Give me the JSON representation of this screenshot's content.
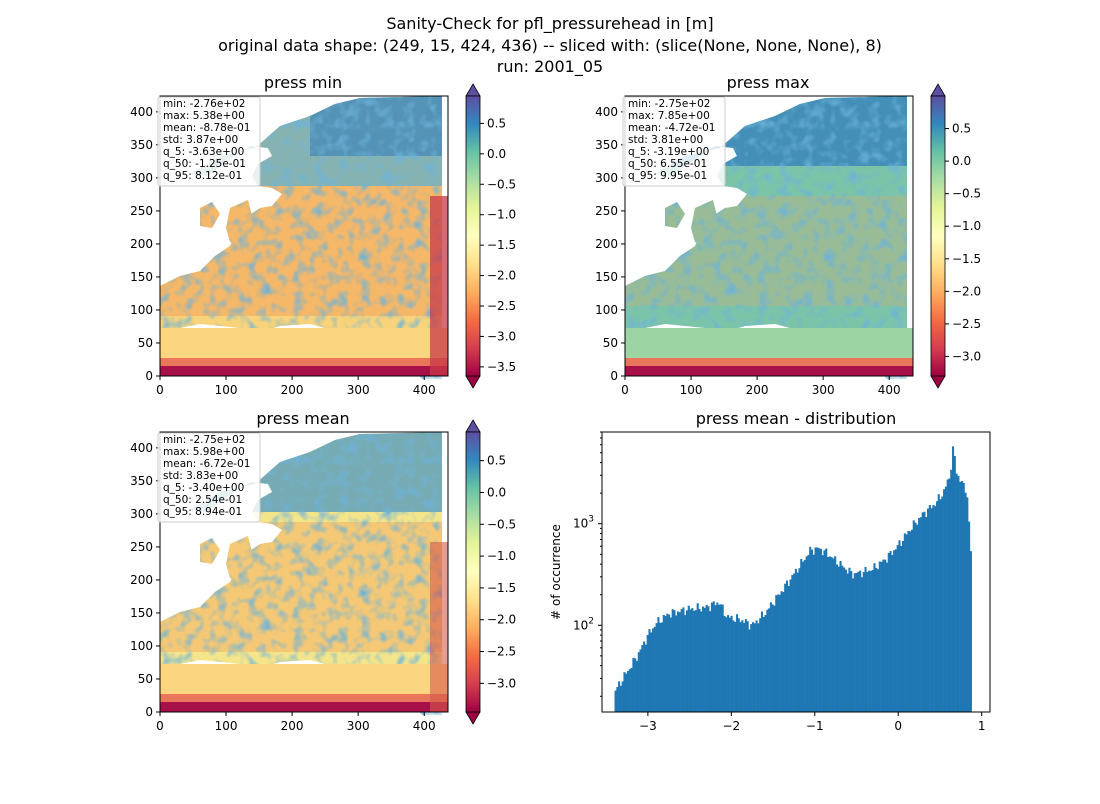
{
  "figure": {
    "title_lines": [
      "Sanity-Check for pfl_pressurehead in [m]",
      "original data shape: (249, 15, 424, 436) -- sliced with: (slice(None, None, None), 8)",
      "run: 2001_05"
    ]
  },
  "colors": {
    "histogram": "#1f77b4",
    "colormap": "Spectral"
  },
  "chart_data": [
    {
      "type": "heatmap",
      "title": "press min",
      "x_ticks": [
        "0",
        "100",
        "200",
        "300",
        "400"
      ],
      "y_ticks": [
        "0",
        "50",
        "100",
        "150",
        "200",
        "250",
        "300",
        "350",
        "400"
      ],
      "xlim": [
        0,
        436
      ],
      "ylim": [
        0,
        424
      ],
      "colorbar": {
        "min": -3.65,
        "max": 0.95,
        "extend": "both",
        "ticks": [
          "0.5",
          "0.0",
          "−0.5",
          "−1.0",
          "−1.5",
          "−2.0",
          "−2.5",
          "−3.0",
          "−3.5"
        ],
        "tick_values": [
          0.5,
          0.0,
          -0.5,
          -1.0,
          -1.5,
          -2.0,
          -2.5,
          -3.0,
          -3.5
        ]
      },
      "stats": [
        "min: -2.76e+02",
        "max: 5.38e+00",
        "mean: -8.78e-01",
        "std: 3.87e+00",
        "q_5: -3.63e+00",
        "q_50: -1.25e-01",
        "q_95: 8.12e-01"
      ]
    },
    {
      "type": "heatmap",
      "title": "press max",
      "x_ticks": [
        "0",
        "100",
        "200",
        "300",
        "400"
      ],
      "y_ticks": [
        "0",
        "50",
        "100",
        "150",
        "200",
        "250",
        "300",
        "350",
        "400"
      ],
      "xlim": [
        0,
        436
      ],
      "ylim": [
        0,
        424
      ],
      "colorbar": {
        "min": -3.3,
        "max": 1.0,
        "extend": "both",
        "ticks": [
          "0.5",
          "0.0",
          "−0.5",
          "−1.0",
          "−1.5",
          "−2.0",
          "−2.5",
          "−3.0"
        ],
        "tick_values": [
          0.5,
          0.0,
          -0.5,
          -1.0,
          -1.5,
          -2.0,
          -2.5,
          -3.0
        ]
      },
      "stats": [
        "min: -2.75e+02",
        "max: 7.85e+00",
        "mean: -4.72e-01",
        "std: 3.81e+00",
        "q_5: -3.19e+00",
        "q_50: 6.55e-01",
        "q_95: 9.95e-01"
      ]
    },
    {
      "type": "heatmap",
      "title": "press mean",
      "x_ticks": [
        "0",
        "100",
        "200",
        "300",
        "400"
      ],
      "y_ticks": [
        "0",
        "50",
        "100",
        "150",
        "200",
        "250",
        "300",
        "350",
        "400"
      ],
      "xlim": [
        0,
        436
      ],
      "ylim": [
        0,
        424
      ],
      "colorbar": {
        "min": -3.45,
        "max": 0.95,
        "extend": "both",
        "ticks": [
          "0.5",
          "0.0",
          "−0.5",
          "−1.0",
          "−1.5",
          "−2.0",
          "−2.5",
          "−3.0"
        ],
        "tick_values": [
          0.5,
          0.0,
          -0.5,
          -1.0,
          -1.5,
          -2.0,
          -2.5,
          -3.0
        ]
      },
      "stats": [
        "min: -2.75e+02",
        "max: 5.98e+00",
        "mean: -6.72e-01",
        "std: 3.83e+00",
        "q_5: -3.40e+00",
        "q_50: 2.54e-01",
        "q_95: 8.94e-01"
      ]
    },
    {
      "type": "bar",
      "title": "press mean - distribution",
      "ylabel": "# of occurrence",
      "xlabel": "",
      "y_scale": "log",
      "xlim": [
        -3.55,
        1.1
      ],
      "ylim": [
        14,
        8000
      ],
      "x_ticks": [
        "−3",
        "−2",
        "−1",
        "0",
        "1"
      ],
      "x_tick_values": [
        -3,
        -2,
        -1,
        0,
        1
      ],
      "y_ticks": [
        {
          "label": "10",
          "exp": "2",
          "value": 100
        },
        {
          "label": "10",
          "exp": "3",
          "value": 1000
        }
      ],
      "bins": {
        "start": -3.4,
        "end": 0.88,
        "count": 200
      },
      "anchors": [
        [
          -3.4,
          22
        ],
        [
          -3.3,
          30
        ],
        [
          -3.2,
          40
        ],
        [
          -3.1,
          55
        ],
        [
          -3.0,
          80
        ],
        [
          -2.9,
          105
        ],
        [
          -2.75,
          130
        ],
        [
          -2.5,
          145
        ],
        [
          -2.3,
          150
        ],
        [
          -2.15,
          170
        ],
        [
          -2.05,
          120
        ],
        [
          -1.9,
          115
        ],
        [
          -1.75,
          100
        ],
        [
          -1.6,
          130
        ],
        [
          -1.45,
          190
        ],
        [
          -1.3,
          280
        ],
        [
          -1.15,
          420
        ],
        [
          -1.05,
          550
        ],
        [
          -0.95,
          570
        ],
        [
          -0.85,
          510
        ],
        [
          -0.7,
          400
        ],
        [
          -0.55,
          320
        ],
        [
          -0.45,
          330
        ],
        [
          -0.3,
          360
        ],
        [
          -0.15,
          450
        ],
        [
          0.0,
          610
        ],
        [
          0.15,
          900
        ],
        [
          0.3,
          1250
        ],
        [
          0.45,
          1600
        ],
        [
          0.55,
          2100
        ],
        [
          0.62,
          3000
        ],
        [
          0.66,
          5700
        ],
        [
          0.7,
          3200
        ],
        [
          0.76,
          2500
        ],
        [
          0.82,
          2200
        ],
        [
          0.86,
          700
        ],
        [
          0.88,
          400
        ]
      ]
    }
  ]
}
